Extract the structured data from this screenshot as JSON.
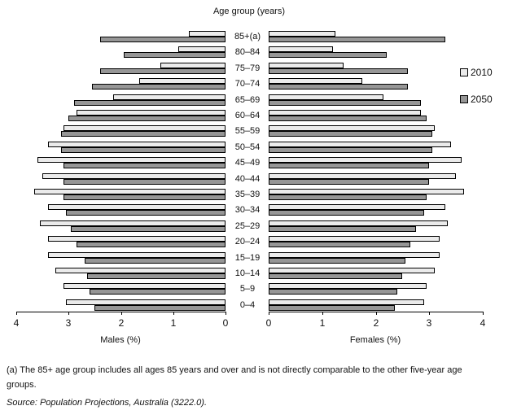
{
  "title": "Age group (years)",
  "legend": {
    "items": [
      {
        "label": "2010",
        "color": "#ebebeb"
      },
      {
        "label": "2050",
        "color": "#969696"
      }
    ]
  },
  "axes": {
    "male_label": "Males (%)",
    "female_label": "Females (%)",
    "ticks": [
      0,
      1,
      2,
      3,
      4
    ],
    "max": 4
  },
  "footnote": "(a) The 85+ age group includes all ages 85 years and over and is not directly comparable to the other five-year age groups.",
  "source": "Source: Population Projections, Australia (3222.0).",
  "chart_data": {
    "type": "bar",
    "subtype": "population-pyramid",
    "title": "Age group (years)",
    "xlabel_left": "Males (%)",
    "xlabel_right": "Females (%)",
    "xlim": [
      0,
      4
    ],
    "legend_position": "right",
    "grid": false,
    "categories_top_to_bottom": [
      "85+(a)",
      "80–84",
      "75–79",
      "70–74",
      "65–69",
      "60–64",
      "55–59",
      "50–54",
      "45–49",
      "40–44",
      "35–39",
      "30–34",
      "25–29",
      "20–24",
      "15–19",
      "10–14",
      "5–9",
      "0–4"
    ],
    "series": [
      {
        "name": "Males 2010",
        "side": "left",
        "year": "2010",
        "color": "#ebebeb",
        "values": [
          0.7,
          0.9,
          1.25,
          1.65,
          2.15,
          2.85,
          3.1,
          3.4,
          3.6,
          3.5,
          3.65,
          3.4,
          3.55,
          3.4,
          3.4,
          3.25,
          3.1,
          3.05
        ]
      },
      {
        "name": "Males 2050",
        "side": "left",
        "year": "2050",
        "color": "#969696",
        "values": [
          2.4,
          1.95,
          2.4,
          2.55,
          2.9,
          3.0,
          3.15,
          3.15,
          3.1,
          3.1,
          3.1,
          3.05,
          2.95,
          2.85,
          2.7,
          2.65,
          2.6,
          2.5
        ]
      },
      {
        "name": "Females 2010",
        "side": "right",
        "year": "2010",
        "color": "#ebebeb",
        "values": [
          1.25,
          1.2,
          1.4,
          1.75,
          2.15,
          2.85,
          3.1,
          3.4,
          3.6,
          3.5,
          3.65,
          3.3,
          3.35,
          3.2,
          3.2,
          3.1,
          2.95,
          2.9
        ]
      },
      {
        "name": "Females 2050",
        "side": "right",
        "year": "2050",
        "color": "#969696",
        "values": [
          3.3,
          2.2,
          2.6,
          2.6,
          2.85,
          2.95,
          3.05,
          3.05,
          3.0,
          3.0,
          2.95,
          2.9,
          2.75,
          2.65,
          2.55,
          2.5,
          2.4,
          2.35
        ]
      }
    ]
  }
}
